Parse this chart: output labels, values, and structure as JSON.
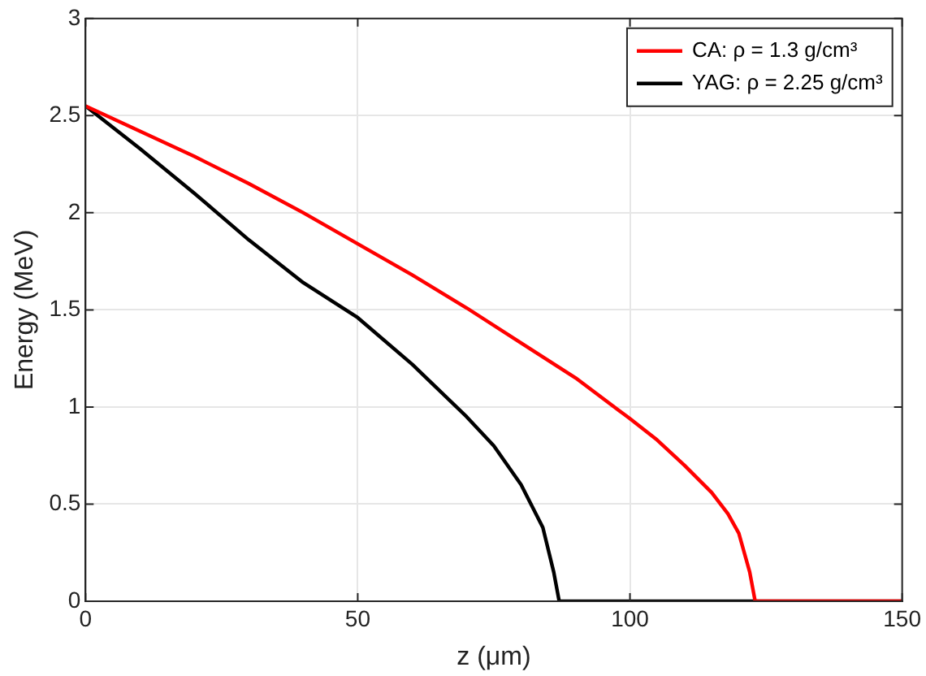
{
  "chart_data": {
    "type": "line",
    "xlabel": "z (μm)",
    "ylabel": "Energy (MeV)",
    "xlim": [
      0,
      150
    ],
    "xticks": [
      0,
      50,
      100,
      150
    ],
    "ylim": [
      0,
      3
    ],
    "yticks": [
      0,
      0.5,
      1,
      1.5,
      2,
      2.5,
      3
    ],
    "grid": true,
    "legend": "top right",
    "marker": "none",
    "line_style": "solid",
    "series": [
      {
        "name": "CA: ρ = 1.3 g/cm³",
        "color": "#ff0000",
        "x": [
          0,
          10,
          20,
          30,
          40,
          50,
          60,
          70,
          80,
          90,
          100,
          105,
          110,
          115,
          118,
          120,
          122,
          123,
          150
        ],
        "values": [
          2.55,
          2.42,
          2.29,
          2.15,
          2.0,
          1.84,
          1.68,
          1.51,
          1.33,
          1.15,
          0.94,
          0.83,
          0.7,
          0.56,
          0.45,
          0.35,
          0.15,
          0,
          0
        ]
      },
      {
        "name": "YAG: ρ = 2.25 g/cm³",
        "color": "#000000",
        "x": [
          0,
          10,
          20,
          30,
          40,
          50,
          60,
          70,
          75,
          80,
          84,
          86,
          87,
          150
        ],
        "values": [
          2.55,
          2.33,
          2.1,
          1.86,
          1.64,
          1.46,
          1.22,
          0.95,
          0.8,
          0.6,
          0.38,
          0.15,
          0,
          0
        ]
      }
    ]
  }
}
